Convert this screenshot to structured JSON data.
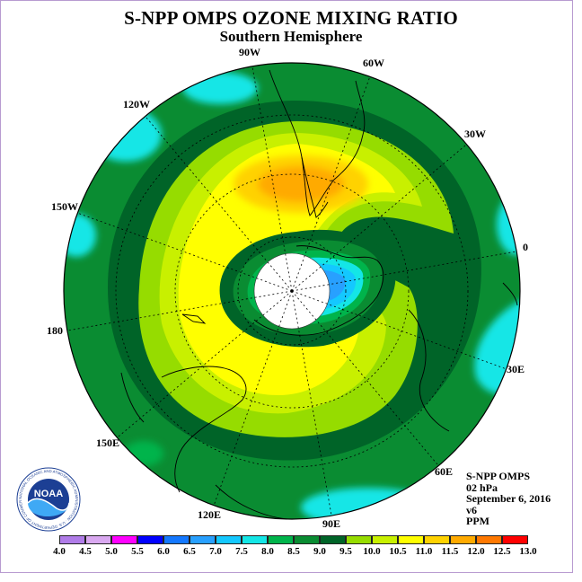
{
  "title": "S-NPP OMPS OZONE MIXING RATIO",
  "subtitle": "Southern Hemisphere",
  "longitude_labels": [
    "90W",
    "60W",
    "30W",
    "0",
    "30E",
    "60E",
    "90E",
    "120E",
    "150E",
    "180",
    "150W",
    "120W"
  ],
  "info": {
    "instrument": "S-NPP OMPS",
    "level": "02 hPa",
    "date": "September 6, 2016",
    "version": "v6",
    "units": "PPM"
  },
  "logo": {
    "text": "NOAA",
    "ring_text": "NATIONAL OCEANIC AND ATMOSPHERIC ADMINISTRATION · U.S. DEPARTMENT OF COMMERCE"
  },
  "colorbar": {
    "ticks": [
      "4.0",
      "4.5",
      "5.0",
      "5.5",
      "6.0",
      "6.5",
      "7.0",
      "7.5",
      "8.0",
      "8.5",
      "9.0",
      "9.5",
      "10.0",
      "10.5",
      "11.0",
      "11.5",
      "12.0",
      "12.5",
      "13.0"
    ],
    "colors": [
      "#b07ce8",
      "#d9a8f0",
      "#ff00ff",
      "#0000ff",
      "#1478ff",
      "#28a0ff",
      "#14c8ff",
      "#14e6e6",
      "#00b44b",
      "#0a8c32",
      "#006428",
      "#96dc00",
      "#c8f000",
      "#ffff00",
      "#ffd200",
      "#ffaa00",
      "#ff7800",
      "#ff0000",
      "#8c5a3c"
    ]
  }
}
